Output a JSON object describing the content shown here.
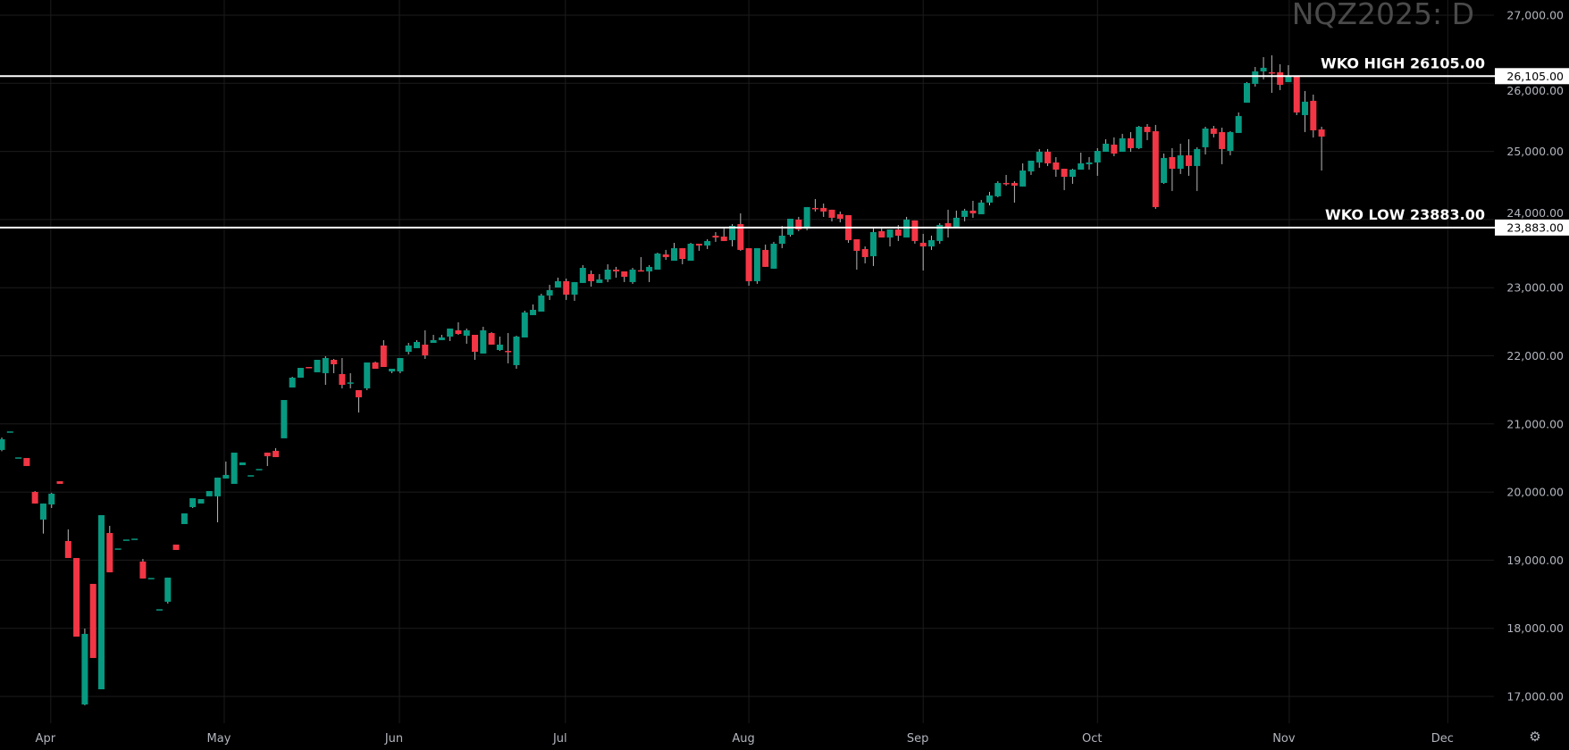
{
  "chart_data": {
    "type": "candlestick",
    "title": "NQZ2025: D",
    "y_ticks": [
      "27,000.00",
      "26,000.00",
      "25,000.00",
      "24,000.00",
      "23,000.00",
      "22,000.00",
      "21,000.00",
      "20,000.00",
      "19,000.00",
      "18,000.00",
      "17,000.00"
    ],
    "y_tick_values": [
      27000,
      26000,
      25000,
      24000,
      23000,
      22000,
      21000,
      20000,
      19000,
      18000,
      17000
    ],
    "ylim": [
      16560,
      27230
    ],
    "x_tick_labels": [
      "Apr",
      "May",
      "Jun",
      "Jul",
      "Aug",
      "Sep",
      "Oct",
      "Nov",
      "Dec"
    ],
    "grid": true,
    "colors": {
      "up": "#089981",
      "down": "#F23645",
      "background": "#000000",
      "lines": "#ffffff"
    },
    "horizontal_lines": [
      {
        "label": "WKO HIGH 26105.00",
        "value": 26105,
        "axis_label": "26,105.00"
      },
      {
        "label": "WKO LOW 23883.00",
        "value": 23883,
        "axis_label": "23,883.00"
      }
    ],
    "ohlc_fields": [
      "open",
      "high",
      "low",
      "close"
    ],
    "candles": [
      [
        20618,
        20800,
        20600,
        20776
      ],
      [
        20890,
        20890,
        20890,
        20890
      ],
      [
        20509,
        20509,
        20509,
        20509
      ],
      [
        20500,
        20500,
        20382,
        20382
      ],
      [
        20002,
        20015,
        19832,
        19832
      ],
      [
        19596,
        19832,
        19390,
        19832
      ],
      [
        19818,
        19989,
        19766,
        19976
      ],
      [
        20159,
        20159,
        20120,
        20120
      ],
      [
        19281,
        19452,
        19032,
        19032
      ],
      [
        19032,
        19032,
        17878,
        17878
      ],
      [
        16882,
        17996,
        16870,
        17918
      ],
      [
        18652,
        18652,
        17564,
        17564
      ],
      [
        17105,
        19661,
        17105,
        19661
      ],
      [
        19399,
        19504,
        18822,
        18822
      ],
      [
        19172,
        19172,
        19172,
        19172
      ],
      [
        19303,
        19303,
        19303,
        19303
      ],
      [
        19316,
        19316,
        19316,
        19316
      ],
      [
        18980,
        19019,
        18731,
        18731
      ],
      [
        18739,
        18739,
        18739,
        18739
      ],
      [
        18280,
        18280,
        18280,
        18280
      ],
      [
        18390,
        18744,
        18363,
        18744
      ],
      [
        19229,
        19229,
        19150,
        19150
      ],
      [
        19530,
        19687,
        19530,
        19687
      ],
      [
        19779,
        19910,
        19766,
        19910
      ],
      [
        19832,
        19897,
        19832,
        19897
      ],
      [
        19937,
        20015,
        19937,
        20015
      ],
      [
        19937,
        20212,
        19556,
        20212
      ],
      [
        20199,
        20448,
        20199,
        20251
      ],
      [
        20120,
        20579,
        20120,
        20579
      ],
      [
        20395,
        20435,
        20395,
        20435
      ],
      [
        20247,
        20247,
        20247,
        20247
      ],
      [
        20339,
        20339,
        20339,
        20339
      ],
      [
        20579,
        20579,
        20382,
        20527
      ],
      [
        20605,
        20645,
        20513,
        20513
      ],
      [
        20789,
        21351,
        20789,
        21351
      ],
      [
        21535,
        21692,
        21535,
        21679
      ],
      [
        21679,
        21823,
        21679,
        21823
      ],
      [
        21836,
        21836,
        21832,
        21832
      ],
      [
        21758,
        21941,
        21758,
        21941
      ],
      [
        21745,
        21994,
        21574,
        21967
      ],
      [
        21941,
        21954,
        21745,
        21876
      ],
      [
        21732,
        21967,
        21522,
        21574
      ],
      [
        21609,
        21745,
        21522,
        21609
      ],
      [
        21496,
        21496,
        21168,
        21391
      ],
      [
        21522,
        21902,
        21496,
        21902
      ],
      [
        21902,
        21915,
        21810,
        21810
      ],
      [
        22151,
        22230,
        21836,
        21836
      ],
      [
        21771,
        21810,
        21745,
        21810
      ],
      [
        21771,
        21967,
        21745,
        21967
      ],
      [
        22059,
        22190,
        22020,
        22151
      ],
      [
        22112,
        22230,
        22112,
        22203
      ],
      [
        22164,
        22374,
        21954,
        22007
      ],
      [
        22190,
        22308,
        22190,
        22230
      ],
      [
        22230,
        22308,
        22230,
        22269
      ],
      [
        22282,
        22400,
        22216,
        22400
      ],
      [
        22374,
        22492,
        22308,
        22321
      ],
      [
        22295,
        22400,
        22177,
        22374
      ],
      [
        22308,
        22308,
        21941,
        22059
      ],
      [
        22033,
        22426,
        22033,
        22374
      ],
      [
        22334,
        22347,
        22164,
        22164
      ],
      [
        22085,
        22282,
        22072,
        22164
      ],
      [
        22072,
        22334,
        21889,
        22068
      ],
      [
        21863,
        22295,
        21810,
        22282
      ],
      [
        22269,
        22662,
        22269,
        22636
      ],
      [
        22597,
        22754,
        22597,
        22675
      ],
      [
        22649,
        22911,
        22649,
        22885
      ],
      [
        22885,
        23042,
        22820,
        22964
      ],
      [
        23003,
        23147,
        23003,
        23095
      ],
      [
        23095,
        23134,
        22820,
        22898
      ],
      [
        22898,
        23082,
        22807,
        23082
      ],
      [
        23069,
        23331,
        23069,
        23291
      ],
      [
        23200,
        23252,
        23016,
        23095
      ],
      [
        23069,
        23200,
        23069,
        23121
      ],
      [
        23121,
        23344,
        23082,
        23265
      ],
      [
        23265,
        23305,
        23147,
        23239
      ],
      [
        23239,
        23239,
        23082,
        23160
      ],
      [
        23082,
        23291,
        23056,
        23265
      ],
      [
        23256,
        23449,
        23239,
        23252
      ],
      [
        23239,
        23331,
        23082,
        23305
      ],
      [
        23265,
        23514,
        23265,
        23501
      ],
      [
        23488,
        23554,
        23409,
        23449
      ],
      [
        23396,
        23658,
        23396,
        23580
      ],
      [
        23580,
        23580,
        23344,
        23422
      ],
      [
        23396,
        23658,
        23396,
        23645
      ],
      [
        23645,
        23645,
        23541,
        23619
      ],
      [
        23619,
        23711,
        23567,
        23685
      ],
      [
        23763,
        23816,
        23672,
        23737
      ],
      [
        23750,
        23894,
        23685,
        23685
      ],
      [
        23698,
        23933,
        23606,
        23907
      ],
      [
        23933,
        24091,
        23541,
        23554
      ],
      [
        23580,
        23580,
        23029,
        23095
      ],
      [
        23095,
        23580,
        23056,
        23580
      ],
      [
        23554,
        23633,
        23305,
        23305
      ],
      [
        23279,
        23672,
        23279,
        23645
      ],
      [
        23645,
        23907,
        23580,
        23763
      ],
      [
        23776,
        24012,
        23750,
        24012
      ],
      [
        23999,
        24039,
        23829,
        23855
      ],
      [
        23868,
        24183,
        23842,
        24183
      ],
      [
        24170,
        24301,
        24118,
        24160
      ],
      [
        24170,
        24235,
        24039,
        24118
      ],
      [
        24144,
        24144,
        23972,
        24026
      ],
      [
        24078,
        24118,
        23959,
        24012
      ],
      [
        24065,
        24065,
        23658,
        23698
      ],
      [
        23711,
        23711,
        23265,
        23541
      ],
      [
        23567,
        23606,
        23357,
        23449
      ],
      [
        23462,
        23881,
        23318,
        23816
      ],
      [
        23829,
        23868,
        23737,
        23737
      ],
      [
        23737,
        23855,
        23606,
        23855
      ],
      [
        23855,
        23920,
        23685,
        23763
      ],
      [
        23737,
        24039,
        23737,
        24000
      ],
      [
        23987,
        23987,
        23646,
        23685
      ],
      [
        23659,
        23790,
        23252,
        23606
      ],
      [
        23606,
        23764,
        23554,
        23698
      ],
      [
        23685,
        23947,
        23646,
        23921
      ],
      [
        23947,
        24144,
        23737,
        23895
      ],
      [
        23895,
        24131,
        23895,
        24026
      ],
      [
        24039,
        24157,
        23974,
        24131
      ],
      [
        24131,
        24275,
        24026,
        24092
      ],
      [
        24078,
        24288,
        24078,
        24249
      ],
      [
        24249,
        24406,
        24209,
        24354
      ],
      [
        24341,
        24563,
        24328,
        24537
      ],
      [
        24537,
        24655,
        24498,
        24524
      ],
      [
        24537,
        24563,
        24249,
        24498
      ],
      [
        24485,
        24825,
        24485,
        24720
      ],
      [
        24707,
        24864,
        24655,
        24864
      ],
      [
        24838,
        25035,
        24760,
        24995
      ],
      [
        24995,
        25035,
        24786,
        24825
      ],
      [
        24838,
        24917,
        24628,
        24733
      ],
      [
        24746,
        24746,
        24432,
        24628
      ],
      [
        24628,
        24746,
        24524,
        24733
      ],
      [
        24733,
        24982,
        24733,
        24825
      ],
      [
        24812,
        24917,
        24733,
        24838
      ],
      [
        24838,
        25048,
        24642,
        25008
      ],
      [
        24995,
        25179,
        24995,
        25113
      ],
      [
        25100,
        25206,
        24930,
        24969
      ],
      [
        24995,
        25258,
        24995,
        25193
      ],
      [
        25193,
        25284,
        24995,
        25048
      ],
      [
        25048,
        25375,
        25035,
        25362
      ],
      [
        25362,
        25401,
        25166,
        25284
      ],
      [
        25297,
        25389,
        24157,
        24183
      ],
      [
        24537,
        24969,
        24524,
        24904
      ],
      [
        24917,
        25048,
        24419,
        24746
      ],
      [
        24746,
        25113,
        24668,
        24943
      ],
      [
        24943,
        25179,
        24642,
        24786
      ],
      [
        24786,
        25061,
        24419,
        25035
      ],
      [
        25061,
        25362,
        24956,
        25336
      ],
      [
        25336,
        25375,
        25206,
        25258
      ],
      [
        25284,
        25349,
        24812,
        25035
      ],
      [
        25008,
        25297,
        24943,
        25284
      ],
      [
        25271,
        25572,
        25271,
        25520
      ],
      [
        25716,
        26018,
        25716,
        26004
      ],
      [
        25992,
        26240,
        25952,
        26175
      ],
      [
        26175,
        26384,
        26057,
        26228
      ],
      [
        26162,
        26411,
        25860,
        26149
      ],
      [
        26162,
        26280,
        25900,
        25978
      ],
      [
        26018,
        26267,
        26018,
        26110
      ],
      [
        26110,
        26110,
        25533,
        25572
      ],
      [
        25533,
        25887,
        25284,
        25730
      ],
      [
        25743,
        25834,
        25205,
        25310
      ],
      [
        25323,
        25362,
        24720,
        25218
      ]
    ]
  },
  "toolbar": {
    "settings_icon": "gear-icon"
  }
}
